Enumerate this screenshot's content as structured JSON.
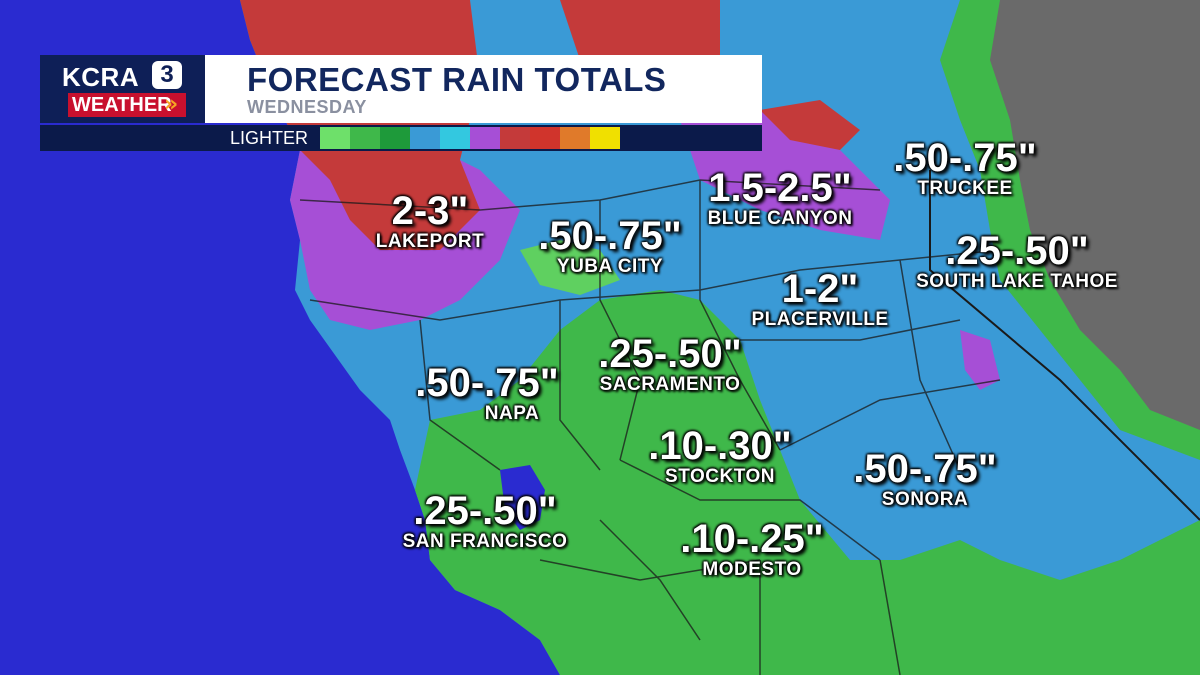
{
  "header": {
    "brand": "KCRA",
    "brand_number": "3",
    "weather_tag": "WEATHER",
    "title": "FORECAST RAIN TOTALS",
    "subtitle": "WEDNESDAY",
    "legend_label": "LIGHTER"
  },
  "legend_colors": [
    "#6ee06a",
    "#3fb84a",
    "#1e9a3a",
    "#3a9ad6",
    "#33c8e0",
    "#a64fd6",
    "#c43a3a",
    "#d0342c",
    "#e07a2a",
    "#f0e000"
  ],
  "map_colors": {
    "ocean": "#2a2bd0",
    "light_rain": "#3fb84a",
    "moderate_rain": "#3a9ad6",
    "heavy_rain": "#a64fd6",
    "very_heavy_rain": "#c43a3a",
    "no_rain_terrain": "#6a6a6a",
    "borders": "#1a1a1a"
  },
  "labels": [
    {
      "id": "lakeport",
      "amount": "2-3\"",
      "city": "LAKEPORT"
    },
    {
      "id": "yuba-city",
      "amount": ".50-.75\"",
      "city": "YUBA CITY"
    },
    {
      "id": "blue-canyon",
      "amount": "1.5-2.5\"",
      "city": "BLUE CANYON"
    },
    {
      "id": "truckee",
      "amount": ".50-.75\"",
      "city": "TRUCKEE"
    },
    {
      "id": "south-lake-tahoe",
      "amount": ".25-.50\"",
      "city": "SOUTH LAKE TAHOE"
    },
    {
      "id": "placerville",
      "amount": "1-2\"",
      "city": "PLACERVILLE"
    },
    {
      "id": "sacramento",
      "amount": ".25-.50\"",
      "city": "SACRAMENTO"
    },
    {
      "id": "napa",
      "amount": ".50-.75\"",
      "city": "NAPA"
    },
    {
      "id": "stockton",
      "amount": ".10-.30\"",
      "city": "STOCKTON"
    },
    {
      "id": "sonora",
      "amount": ".50-.75\"",
      "city": "SONORA"
    },
    {
      "id": "san-francisco",
      "amount": ".25-.50\"",
      "city": "SAN FRANCISCO"
    },
    {
      "id": "modesto",
      "amount": ".10-.25\"",
      "city": "MODESTO"
    }
  ]
}
